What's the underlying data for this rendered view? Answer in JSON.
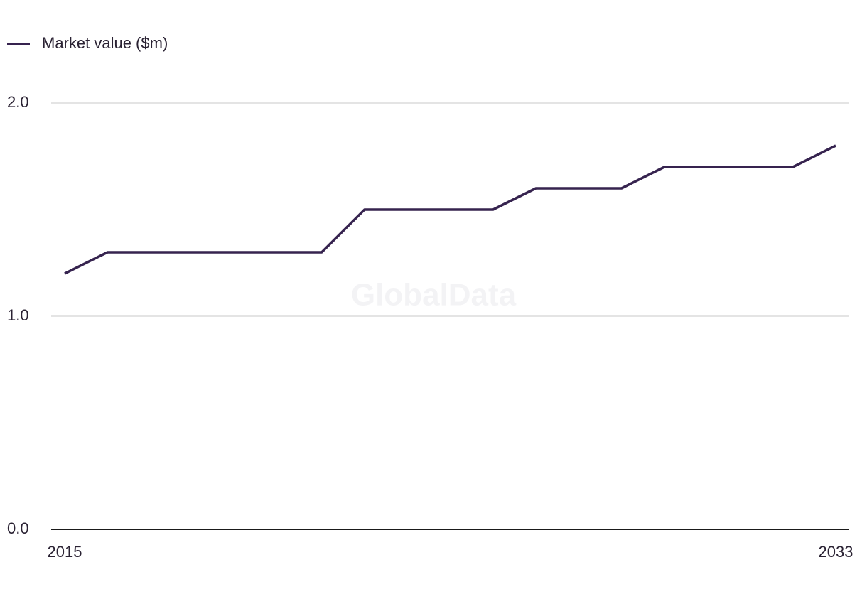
{
  "chart_data": {
    "type": "line",
    "watermark": "GlobalData",
    "x": [
      2015,
      2016,
      2017,
      2018,
      2019,
      2020,
      2021,
      2022,
      2023,
      2024,
      2025,
      2026,
      2027,
      2028,
      2029,
      2030,
      2031,
      2032,
      2033
    ],
    "series": [
      {
        "name": "Market value ($m)",
        "color": "#36234f",
        "values": [
          1.2,
          1.3,
          1.3,
          1.3,
          1.3,
          1.3,
          1.3,
          1.5,
          1.5,
          1.5,
          1.5,
          1.6,
          1.6,
          1.6,
          1.7,
          1.7,
          1.7,
          1.7,
          1.8
        ]
      }
    ],
    "xlim": [
      2015,
      2033
    ],
    "xticks": [
      2015,
      2033
    ],
    "ylim": [
      0,
      2
    ],
    "yticks": [
      {
        "value": 0,
        "label": "0.0"
      },
      {
        "value": 1,
        "label": "1.0"
      },
      {
        "value": 2,
        "label": "2.0"
      }
    ],
    "grid": true,
    "legend": "top-left"
  }
}
